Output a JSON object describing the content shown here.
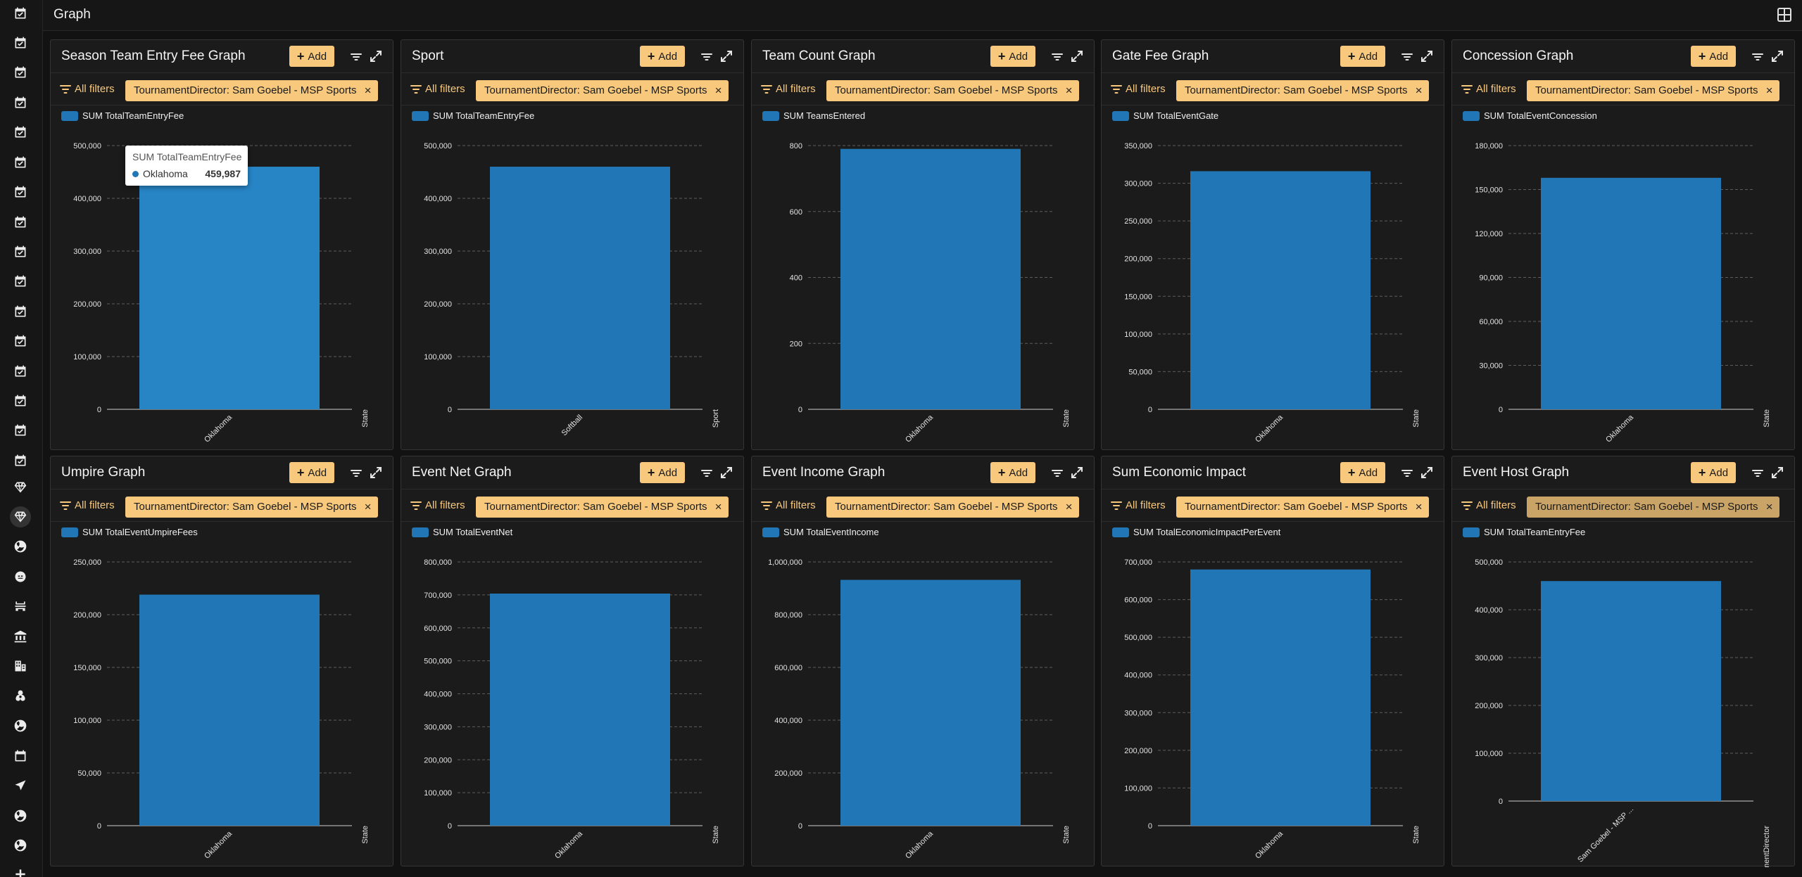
{
  "header": {
    "title": "Graph",
    "layout_icon": "layout-grid-icon"
  },
  "sidebar": {
    "items": [
      {
        "icon": "calendar-check-icon"
      },
      {
        "icon": "calendar-check-icon"
      },
      {
        "icon": "calendar-check-icon"
      },
      {
        "icon": "calendar-check-icon"
      },
      {
        "icon": "calendar-check-icon"
      },
      {
        "icon": "calendar-check-icon"
      },
      {
        "icon": "calendar-check-icon"
      },
      {
        "icon": "calendar-check-icon"
      },
      {
        "icon": "calendar-check-icon"
      },
      {
        "icon": "calendar-check-icon"
      },
      {
        "icon": "calendar-check-icon"
      },
      {
        "icon": "calendar-check-icon"
      },
      {
        "icon": "calendar-check-icon"
      },
      {
        "icon": "calendar-check-icon"
      },
      {
        "icon": "calendar-check-icon"
      },
      {
        "icon": "calendar-check-icon"
      },
      {
        "icon": "diamond-icon"
      },
      {
        "icon": "diamond-icon",
        "active": true
      },
      {
        "icon": "baseball-icon"
      },
      {
        "icon": "mask-icon"
      },
      {
        "icon": "stadium-icon"
      },
      {
        "icon": "bank-icon"
      },
      {
        "icon": "hotel-icon"
      },
      {
        "icon": "biohazard-icon"
      },
      {
        "icon": "baseball-icon"
      },
      {
        "icon": "calendar-icon"
      },
      {
        "icon": "send-icon"
      },
      {
        "icon": "baseball-icon"
      },
      {
        "icon": "baseball-icon"
      },
      {
        "icon": "plus-icon"
      }
    ]
  },
  "panel_common": {
    "add_label": "Add",
    "all_filters_label": "All filters",
    "filter_chip": "TournamentDirector: Sam Goebel - MSP Sports",
    "chip_close": "×"
  },
  "colors": {
    "accent": "#f8c97d",
    "bar": "#2176b5",
    "background": "#121212",
    "panel": "#1b1b1b"
  },
  "tooltip": {
    "title": "SUM TotalTeamEntryFee",
    "label": "Oklahoma",
    "value": "459,987",
    "color": "#2176b5"
  },
  "chart_data": [
    {
      "type": "bar",
      "title": "Season Team Entry Fee Graph",
      "series": [
        {
          "name": "SUM TotalTeamEntryFee",
          "values": [
            459987
          ]
        }
      ],
      "categories": [
        "Oklahoma"
      ],
      "xlabel": "State",
      "ylim": [
        0,
        500000
      ],
      "yticks": [
        "0",
        "100,000",
        "200,000",
        "300,000",
        "400,000",
        "500,000"
      ],
      "highlight": true
    },
    {
      "type": "bar",
      "title": "Sport",
      "series": [
        {
          "name": "SUM TotalTeamEntryFee",
          "values": [
            459987
          ]
        }
      ],
      "categories": [
        "Softball"
      ],
      "xlabel": "Sport",
      "ylim": [
        0,
        500000
      ],
      "yticks": [
        "0",
        "100,000",
        "200,000",
        "300,000",
        "400,000",
        "500,000"
      ]
    },
    {
      "type": "bar",
      "title": "Team Count Graph",
      "series": [
        {
          "name": "SUM TeamsEntered",
          "values": [
            790
          ]
        }
      ],
      "categories": [
        "Oklahoma"
      ],
      "xlabel": "State",
      "ylim": [
        0,
        800
      ],
      "yticks": [
        "0",
        "200",
        "400",
        "600",
        "800"
      ]
    },
    {
      "type": "bar",
      "title": "Gate Fee Graph",
      "series": [
        {
          "name": "SUM TotalEventGate",
          "values": [
            316000
          ]
        }
      ],
      "categories": [
        "Oklahoma"
      ],
      "xlabel": "State",
      "ylim": [
        0,
        350000
      ],
      "yticks": [
        "0",
        "50,000",
        "100,000",
        "150,000",
        "200,000",
        "250,000",
        "300,000",
        "350,000"
      ]
    },
    {
      "type": "bar",
      "title": "Concession Graph",
      "series": [
        {
          "name": "SUM TotalEventConcession",
          "values": [
            158000
          ]
        }
      ],
      "categories": [
        "Oklahoma"
      ],
      "xlabel": "State",
      "ylim": [
        0,
        180000
      ],
      "yticks": [
        "0",
        "30,000",
        "60,000",
        "90,000",
        "120,000",
        "150,000",
        "180,000"
      ]
    },
    {
      "type": "bar",
      "title": "Umpire Graph",
      "series": [
        {
          "name": "SUM TotalEventUmpireFees",
          "values": [
            219000
          ]
        }
      ],
      "categories": [
        "Oklahoma"
      ],
      "xlabel": "State",
      "ylim": [
        0,
        250000
      ],
      "yticks": [
        "0",
        "50,000",
        "100,000",
        "150,000",
        "200,000",
        "250,000"
      ]
    },
    {
      "type": "bar",
      "title": "Event Net Graph",
      "series": [
        {
          "name": "SUM TotalEventNet",
          "values": [
            704000
          ]
        }
      ],
      "categories": [
        "Oklahoma"
      ],
      "xlabel": "State",
      "ylim": [
        0,
        800000
      ],
      "yticks": [
        "0",
        "100,000",
        "200,000",
        "300,000",
        "400,000",
        "500,000",
        "600,000",
        "700,000",
        "800,000"
      ]
    },
    {
      "type": "bar",
      "title": "Event Income Graph",
      "series": [
        {
          "name": "SUM TotalEventIncome",
          "values": [
            932000
          ]
        }
      ],
      "categories": [
        "Oklahoma"
      ],
      "xlabel": "State",
      "ylim": [
        0,
        1000000
      ],
      "yticks": [
        "0",
        "200,000",
        "400,000",
        "600,000",
        "800,000",
        "1,000,000"
      ]
    },
    {
      "type": "bar",
      "title": "Sum Economic Impact",
      "series": [
        {
          "name": "SUM TotalEconomicImpactPerEvent",
          "values": [
            680000
          ]
        }
      ],
      "categories": [
        "Oklahoma"
      ],
      "xlabel": "State",
      "ylim": [
        0,
        700000
      ],
      "yticks": [
        "0",
        "100,000",
        "200,000",
        "300,000",
        "400,000",
        "500,000",
        "600,000",
        "700,000"
      ]
    },
    {
      "type": "bar",
      "title": "Event Host Graph",
      "series": [
        {
          "name": "SUM TotalTeamEntryFee",
          "values": [
            459987
          ]
        }
      ],
      "categories": [
        "Sam Goebel - MSP ..."
      ],
      "xlabel": "TournamentDirector",
      "ylim": [
        0,
        500000
      ],
      "yticks": [
        "0",
        "100,000",
        "200,000",
        "300,000",
        "400,000",
        "500,000"
      ],
      "chip_muted": true
    }
  ]
}
